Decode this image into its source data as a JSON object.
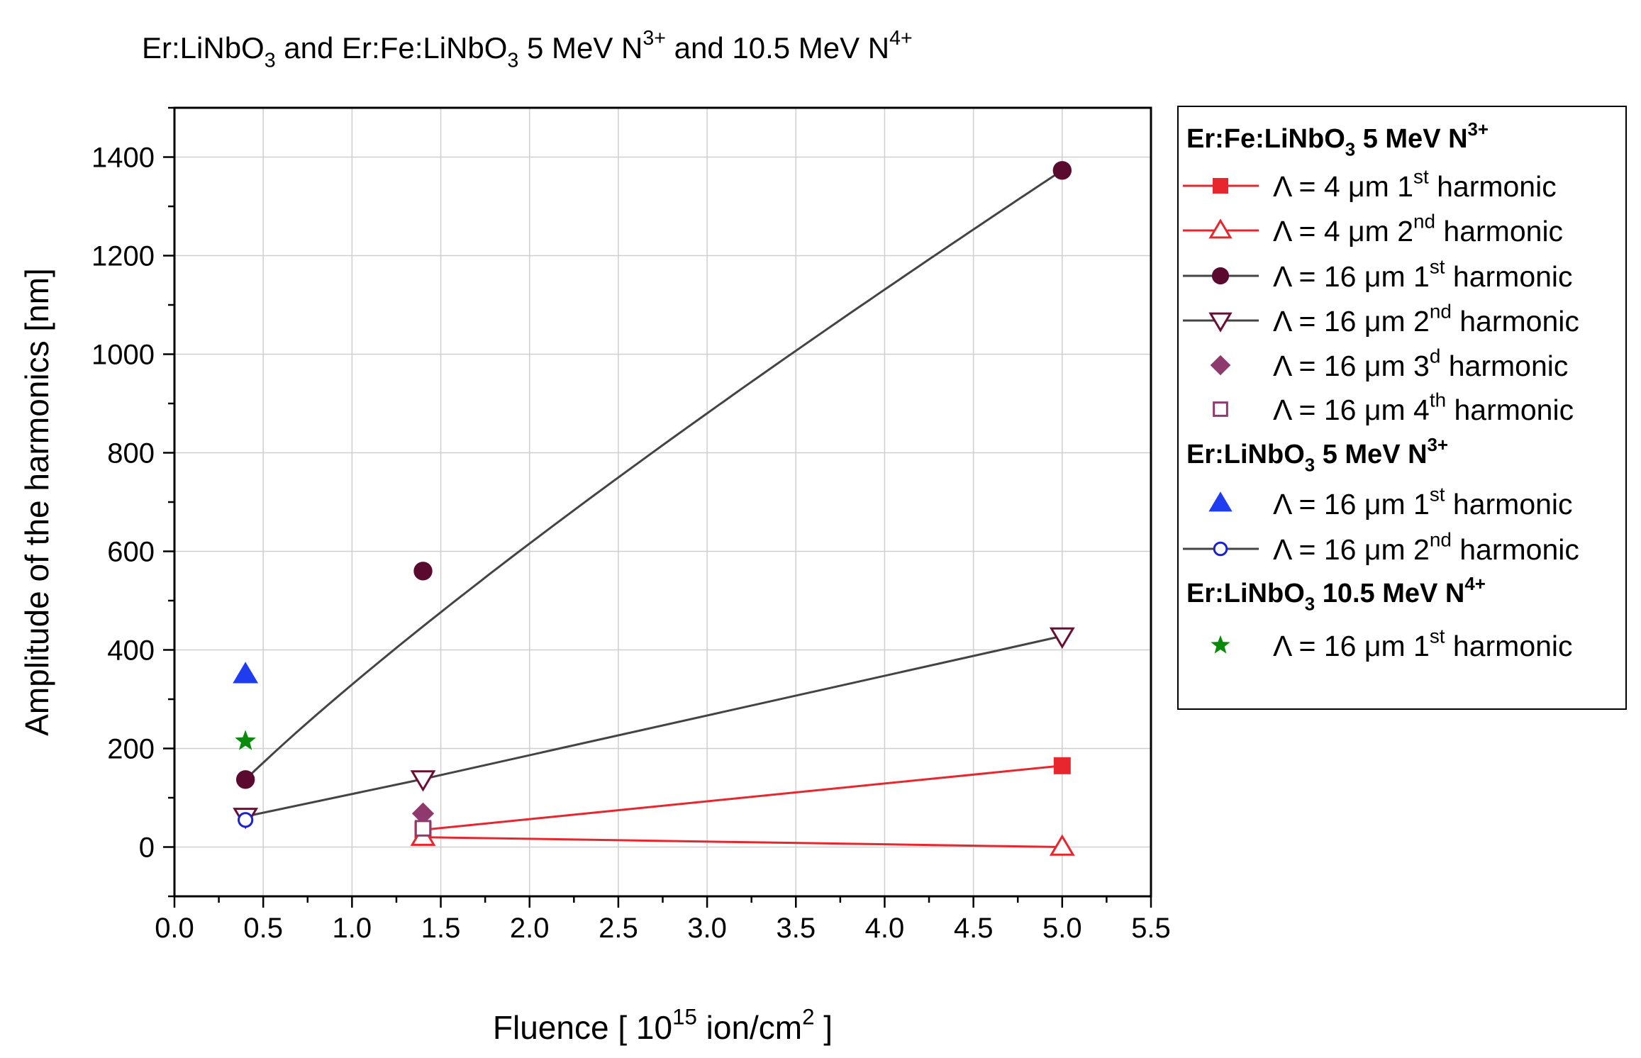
{
  "chart_data": {
    "type": "scatter",
    "title": {
      "text": "Er:LiNbO3 and Er:Fe:LiNbO3  5 MeV N3+ and 10.5 MeV N4+",
      "parts": [
        {
          "t": "Er:LiNbO",
          "style": "normal"
        },
        {
          "t": "3",
          "style": "sub"
        },
        {
          "t": " and Er:Fe:LiNbO",
          "style": "normal"
        },
        {
          "t": "3",
          "style": "sub"
        },
        {
          "t": "  5 MeV N",
          "style": "normal"
        },
        {
          "t": "3+",
          "style": "sup"
        },
        {
          "t": " and 10.5 MeV N",
          "style": "normal"
        },
        {
          "t": "4+",
          "style": "sup"
        }
      ]
    },
    "xlabel": {
      "text": "Fluence [ 1015 ion/cm2 ]",
      "parts": [
        {
          "t": "Fluence [ 10",
          "style": "normal"
        },
        {
          "t": "15",
          "style": "sup"
        },
        {
          "t": " ion/cm",
          "style": "normal"
        },
        {
          "t": "2",
          "style": "sup"
        },
        {
          "t": " ]",
          "style": "normal"
        }
      ]
    },
    "ylabel": "Amplitude of the harmonics [nm]",
    "xlim": [
      0,
      5.5
    ],
    "ylim": [
      -100,
      1500
    ],
    "grid": true,
    "xticks": [
      "0.0",
      "0.5",
      "1.0",
      "1.5",
      "2.0",
      "2.5",
      "3.0",
      "3.5",
      "4.0",
      "4.5",
      "5.0",
      "5.5"
    ],
    "yticks": [
      "0",
      "200",
      "400",
      "600",
      "800",
      "1000",
      "1200",
      "1400"
    ],
    "legend_position": "outside-right",
    "series": [
      {
        "name": "Λ = 4 μm 1st harmonic",
        "group": "Er:Fe:LiNbO3 5 MeV N3+",
        "marker": "square-filled",
        "color": "#e8262d",
        "line": "straight",
        "points": [
          [
            1.4,
            35
          ],
          [
            5.0,
            165
          ]
        ]
      },
      {
        "name": "Λ = 4 μm 2nd harmonic",
        "group": "Er:Fe:LiNbO3 5 MeV N3+",
        "marker": "triangle-up-open",
        "color": "#e8262d",
        "line": "straight",
        "points": [
          [
            1.4,
            20
          ],
          [
            5.0,
            0
          ]
        ]
      },
      {
        "name": "Λ = 16 μm 1st harmonic",
        "group": "Er:Fe:LiNbO3 5 MeV N3+",
        "marker": "circle-filled",
        "color": "#5a0a2e",
        "line": "fit",
        "points": [
          [
            0.4,
            137
          ],
          [
            1.4,
            560
          ],
          [
            5.0,
            1373
          ]
        ]
      },
      {
        "name": "Λ = 16 μm 2nd harmonic",
        "group": "Er:Fe:LiNbO3 5 MeV N3+",
        "marker": "triangle-down-open",
        "color": "#6a0e34",
        "line": "straight",
        "points": [
          [
            0.4,
            62
          ],
          [
            1.4,
            138
          ],
          [
            5.0,
            428
          ]
        ]
      },
      {
        "name": "Λ = 16 μm 3d harmonic",
        "group": "Er:Fe:LiNbO3 5 MeV N3+",
        "marker": "diamond-filled",
        "color": "#8e3a6e",
        "line": "none",
        "points": [
          [
            1.4,
            68
          ]
        ]
      },
      {
        "name": "Λ = 16 μm 4th harmonic",
        "group": "Er:Fe:LiNbO3 5 MeV N3+",
        "marker": "square-open",
        "color": "#8e3a6e",
        "line": "none",
        "points": [
          [
            1.4,
            38
          ]
        ]
      },
      {
        "name": "Λ = 16 μm 1st harmonic",
        "group": "Er:LiNbO3 5 MeV N3+",
        "marker": "triangle-up-filled",
        "color": "#1f3cf0",
        "line": "none",
        "points": [
          [
            0.4,
            350
          ]
        ]
      },
      {
        "name": "Λ = 16 μm 2nd harmonic",
        "group": "Er:LiNbO3 5 MeV N3+",
        "marker": "circle-open",
        "color": "#1a22d0",
        "line": "none",
        "points": [
          [
            0.4,
            55
          ]
        ]
      },
      {
        "name": "Λ = 16 μm 1st harmonic",
        "group": "Er:LiNbO3 10.5 MeV N4+",
        "marker": "star-filled",
        "color": "#0a8a0a",
        "line": "none",
        "points": [
          [
            0.4,
            215
          ]
        ]
      }
    ],
    "legend": [
      {
        "kind": "header",
        "parts": [
          {
            "t": "Er:Fe:LiNbO",
            "style": "normal"
          },
          {
            "t": "3",
            "style": "sub"
          },
          {
            "t": " 5 MeV N",
            "style": "normal"
          },
          {
            "t": "3+",
            "style": "sup"
          }
        ]
      },
      {
        "kind": "entry",
        "series": 0,
        "linecolor": "#e8262d",
        "parts": [
          {
            "t": "Λ = 4 μm 1",
            "style": "normal"
          },
          {
            "t": "st",
            "style": "sup"
          },
          {
            "t": " harmonic",
            "style": "normal"
          }
        ]
      },
      {
        "kind": "entry",
        "series": 1,
        "linecolor": "#e8262d",
        "parts": [
          {
            "t": "Λ = 4 μm 2",
            "style": "normal"
          },
          {
            "t": "nd",
            "style": "sup"
          },
          {
            "t": " harmonic",
            "style": "normal"
          }
        ]
      },
      {
        "kind": "entry",
        "series": 2,
        "linecolor": "#444444",
        "parts": [
          {
            "t": "Λ = 16 μm 1",
            "style": "normal"
          },
          {
            "t": "st",
            "style": "sup"
          },
          {
            "t": " harmonic",
            "style": "normal"
          }
        ]
      },
      {
        "kind": "entry",
        "series": 3,
        "linecolor": "#444444",
        "parts": [
          {
            "t": "Λ = 16 μm 2",
            "style": "normal"
          },
          {
            "t": "nd",
            "style": "sup"
          },
          {
            "t": " harmonic",
            "style": "normal"
          }
        ]
      },
      {
        "kind": "entry",
        "series": 4,
        "linecolor": "",
        "parts": [
          {
            "t": "Λ = 16 μm 3",
            "style": "normal"
          },
          {
            "t": "d",
            "style": "sup"
          },
          {
            "t": " harmonic",
            "style": "normal"
          }
        ]
      },
      {
        "kind": "entry",
        "series": 5,
        "linecolor": "",
        "parts": [
          {
            "t": "Λ = 16 μm 4",
            "style": "normal"
          },
          {
            "t": "th",
            "style": "sup"
          },
          {
            "t": " harmonic",
            "style": "normal"
          }
        ]
      },
      {
        "kind": "header",
        "parts": [
          {
            "t": "Er:LiNbO",
            "style": "normal"
          },
          {
            "t": "3",
            "style": "sub"
          },
          {
            "t": " 5 MeV N",
            "style": "normal"
          },
          {
            "t": "3+",
            "style": "sup"
          }
        ]
      },
      {
        "kind": "entry",
        "series": 6,
        "linecolor": "",
        "parts": [
          {
            "t": "Λ = 16 μm 1",
            "style": "normal"
          },
          {
            "t": "st",
            "style": "sup"
          },
          {
            "t": " harmonic",
            "style": "normal"
          }
        ]
      },
      {
        "kind": "entry",
        "series": 7,
        "linecolor": "#444444",
        "parts": [
          {
            "t": "Λ = 16 μm 2",
            "style": "normal"
          },
          {
            "t": "nd",
            "style": "sup"
          },
          {
            "t": " harmonic",
            "style": "normal"
          }
        ]
      },
      {
        "kind": "header",
        "parts": [
          {
            "t": "Er:LiNbO",
            "style": "normal"
          },
          {
            "t": "3",
            "style": "sub"
          },
          {
            "t": " 10.5 MeV N",
            "style": "normal"
          },
          {
            "t": "4+",
            "style": "sup"
          }
        ]
      },
      {
        "kind": "entry",
        "series": 8,
        "linecolor": "",
        "parts": [
          {
            "t": "Λ = 16 μm 1",
            "style": "normal"
          },
          {
            "t": "st",
            "style": "sup"
          },
          {
            "t": " harmonic",
            "style": "normal"
          }
        ]
      }
    ]
  }
}
